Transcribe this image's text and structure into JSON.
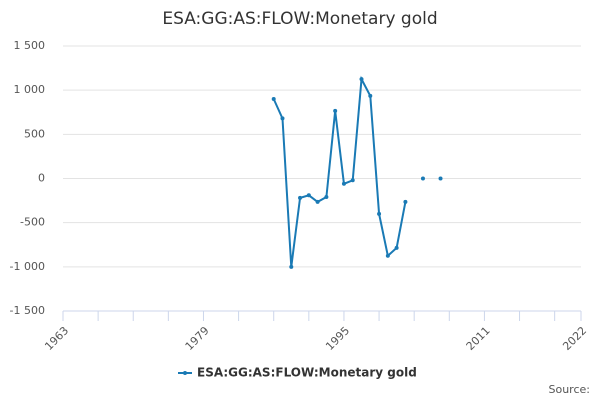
{
  "chart_data": {
    "type": "line",
    "title": "ESA:GG:AS:FLOW:Monetary gold",
    "x": [
      1987,
      1988,
      1989,
      1990,
      1991,
      1992,
      1993,
      1994,
      1995,
      1996,
      1997,
      1998,
      1999,
      2000,
      2001,
      2002,
      2003,
      2004,
      2005,
      2006
    ],
    "series": [
      {
        "name": "ESA:GG:AS:FLOW:Monetary gold",
        "color": "#1a7ab5",
        "values": [
          900,
          680,
          -1000,
          -220,
          -190,
          -265,
          -210,
          765,
          -60,
          -20,
          1125,
          935,
          -400,
          -875,
          -785,
          -265,
          null,
          0,
          null,
          0
        ]
      }
    ],
    "xlim": [
      1963,
      2022
    ],
    "xticks": [
      1963,
      1979,
      1995,
      2011,
      2022
    ],
    "xminor_ticks": [
      1967,
      1971,
      1975,
      1983,
      1987,
      1991,
      1999,
      2003,
      2007,
      2015,
      2019
    ],
    "ylim": [
      -1500,
      1500
    ],
    "yticks": [
      {
        "value": -1500,
        "label": "-1 500"
      },
      {
        "value": -1000,
        "label": "-1 000"
      },
      -500,
      0,
      500,
      {
        "value": 1000,
        "label": "1 000"
      },
      {
        "value": 1500,
        "label": "1 500"
      }
    ],
    "grid": true,
    "legend": "bottom",
    "source": "Source:"
  }
}
